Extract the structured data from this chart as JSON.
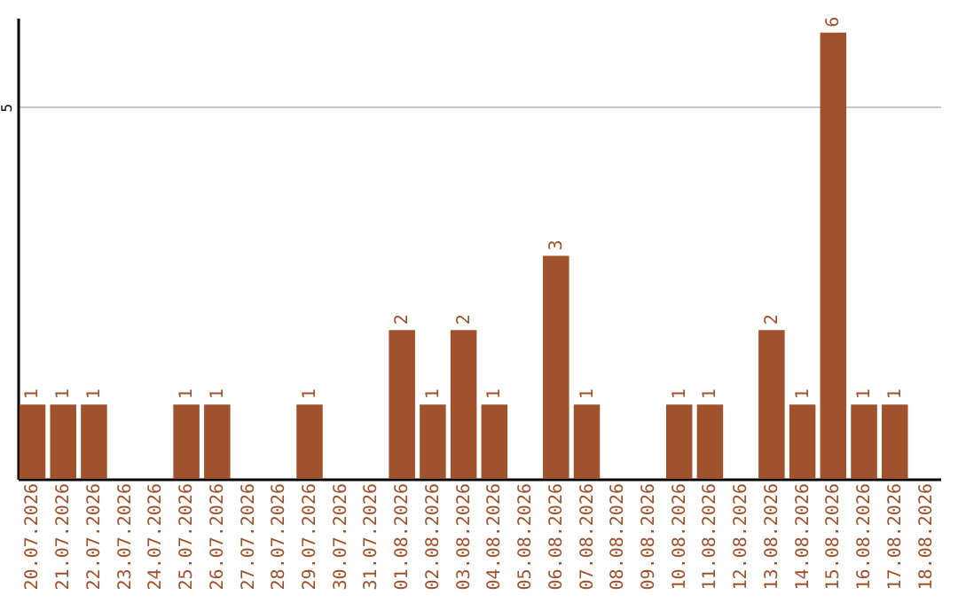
{
  "chart_data": {
    "type": "bar",
    "categories": [
      "20.07.2026",
      "21.07.2026",
      "22.07.2026",
      "23.07.2026",
      "24.07.2026",
      "25.07.2026",
      "26.07.2026",
      "27.07.2026",
      "28.07.2026",
      "29.07.2026",
      "30.07.2026",
      "31.07.2026",
      "01.08.2026",
      "02.08.2026",
      "03.08.2026",
      "04.08.2026",
      "05.08.2026",
      "06.08.2026",
      "07.08.2026",
      "08.08.2026",
      "09.08.2026",
      "10.08.2026",
      "11.08.2026",
      "12.08.2026",
      "13.08.2026",
      "14.08.2026",
      "15.08.2026",
      "16.08.2026",
      "17.08.2026",
      "18.08.2026"
    ],
    "values": [
      1,
      1,
      1,
      null,
      null,
      1,
      1,
      null,
      null,
      1,
      null,
      null,
      2,
      1,
      2,
      1,
      null,
      3,
      1,
      null,
      null,
      1,
      1,
      null,
      2,
      1,
      6,
      1,
      1,
      null
    ],
    "color": "#a0522d",
    "ylim": [
      0,
      6.2
    ],
    "yticks": [
      5
    ],
    "grid": "y",
    "data_labels": true
  }
}
